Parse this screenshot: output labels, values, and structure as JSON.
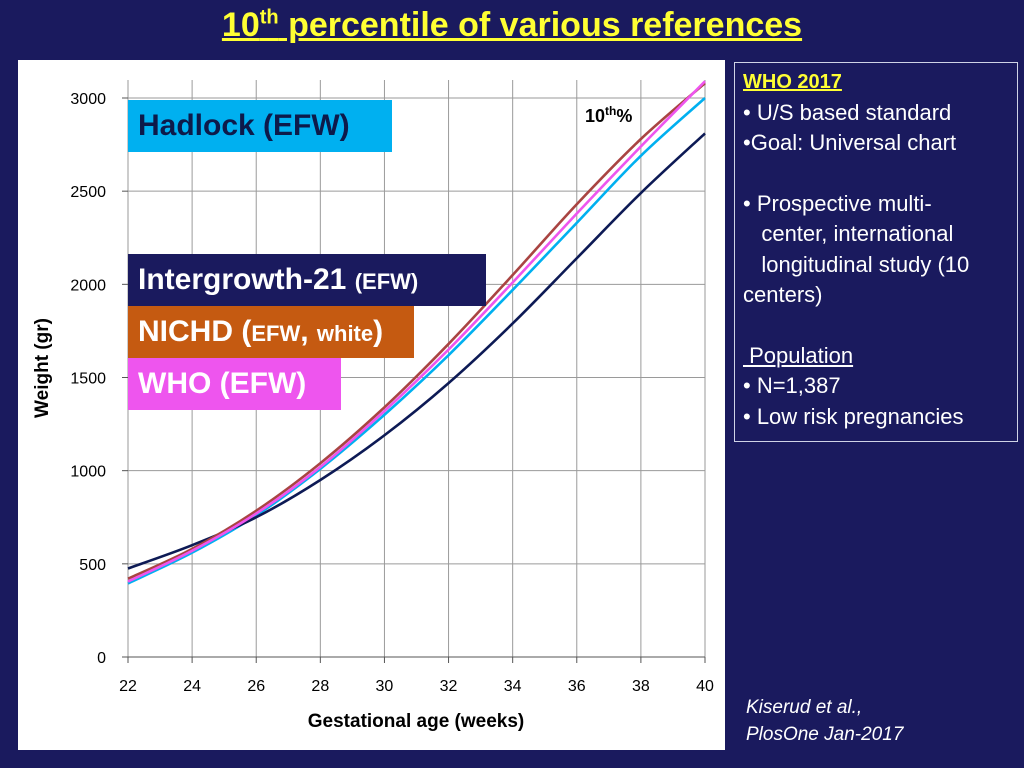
{
  "title": {
    "main": "10",
    "sup": "th",
    "rest": " percentile of various references"
  },
  "labels": {
    "hadlock": "Hadlock (EFW)",
    "intergrowth_main": "Intergrowth-21 ",
    "intergrowth_small": "(EFW)",
    "nichd_main": "NICHD (",
    "nichd_small1": "EFW",
    "nichd_comma": ", ",
    "nichd_small2": "white",
    "nichd_close": ")",
    "who": "WHO (EFW)",
    "percentile_main": "10",
    "percentile_sup": "th",
    "percentile_rest": "%"
  },
  "info": {
    "head": "WHO 2017",
    "lines1": [
      "• U/S based standard",
      "•Goal: Universal chart"
    ],
    "lines2": [
      "• Prospective multi-",
      "   center, international",
      "   longitudinal study (10",
      "centers)"
    ],
    "pop_head": " Population",
    "lines3": [
      "• N=1,387",
      "• Low risk pregnancies"
    ]
  },
  "citation": [
    "Kiserud et al.,",
    "PlosOne Jan-2017"
  ],
  "chart_data": {
    "type": "line",
    "title": "",
    "xlabel": "Gestational age (weeks)",
    "ylabel": "Weight (gr)",
    "xlim": [
      22,
      40
    ],
    "ylim": [
      0,
      3000
    ],
    "xticks": [
      22,
      24,
      26,
      28,
      30,
      32,
      34,
      36,
      38,
      40
    ],
    "yticks": [
      0,
      500,
      1000,
      1500,
      2000,
      2500,
      3000
    ],
    "grid": true,
    "series": [
      {
        "name": "Hadlock (EFW)",
        "color": "#00b0f0",
        "x": [
          22,
          24,
          26,
          28,
          30,
          32,
          34,
          36,
          38,
          40
        ],
        "y": [
          395,
          560,
          760,
          1010,
          1300,
          1620,
          1970,
          2330,
          2690,
          3000
        ]
      },
      {
        "name": "Intergrowth-21 (EFW)",
        "color": "#0d1a55",
        "x": [
          22,
          24,
          26,
          28,
          30,
          32,
          34,
          36,
          38,
          40
        ],
        "y": [
          475,
          600,
          750,
          950,
          1190,
          1470,
          1790,
          2140,
          2490,
          2810
        ]
      },
      {
        "name": "NICHD (EFW, white)",
        "color": "#a94442",
        "x": [
          22,
          24,
          26,
          28,
          30,
          32,
          34,
          36,
          38,
          40
        ],
        "y": [
          420,
          580,
          785,
          1040,
          1340,
          1680,
          2050,
          2430,
          2780,
          3080
        ]
      },
      {
        "name": "WHO (EFW)",
        "color": "#ee55ee",
        "x": [
          22,
          24,
          26,
          28,
          30,
          32,
          34,
          36,
          38,
          40
        ],
        "y": [
          405,
          570,
          770,
          1020,
          1320,
          1650,
          2010,
          2380,
          2740,
          3090
        ]
      }
    ]
  }
}
